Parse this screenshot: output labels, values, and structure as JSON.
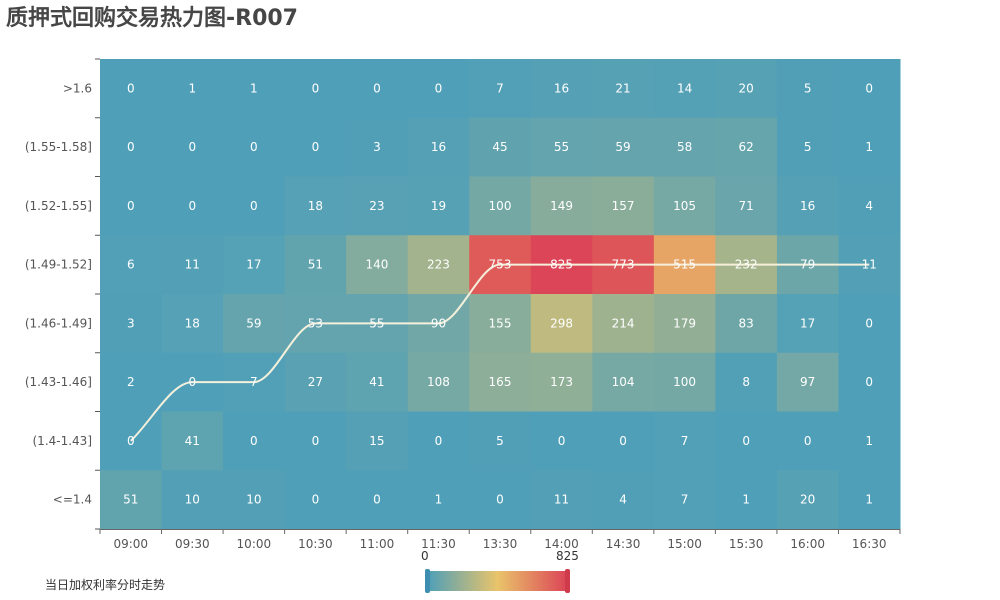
{
  "title": "质押式回购交易热力图-R007",
  "legend_label": "当日加权利率分时走势",
  "visual_map": {
    "min": "0",
    "max": "825",
    "colors": [
      "#4f9fb8",
      "#e9c46a",
      "#dc4557"
    ]
  },
  "chart_data": {
    "type": "heatmap",
    "x": [
      "09:00",
      "09:30",
      "10:00",
      "10:30",
      "11:00",
      "11:30",
      "13:30",
      "14:00",
      "14:30",
      "15:00",
      "15:30",
      "16:00",
      "16:30"
    ],
    "y": [
      ">1.6",
      "(1.55-1.58]",
      "(1.52-1.55]",
      "(1.49-1.52]",
      "(1.46-1.49]",
      "(1.43-1.46]",
      "(1.4-1.43]",
      "<=1.4"
    ],
    "values": [
      [
        0,
        1,
        1,
        0,
        0,
        0,
        7,
        16,
        21,
        14,
        20,
        5,
        0
      ],
      [
        0,
        0,
        0,
        0,
        3,
        16,
        45,
        55,
        59,
        58,
        62,
        5,
        1
      ],
      [
        0,
        0,
        0,
        18,
        23,
        19,
        100,
        149,
        157,
        105,
        71,
        16,
        4
      ],
      [
        6,
        11,
        17,
        51,
        140,
        223,
        753,
        825,
        773,
        515,
        232,
        79,
        11
      ],
      [
        3,
        18,
        59,
        53,
        55,
        90,
        155,
        298,
        214,
        179,
        83,
        17,
        0
      ],
      [
        2,
        0,
        7,
        27,
        41,
        108,
        165,
        173,
        104,
        100,
        8,
        97,
        0
      ],
      [
        0,
        41,
        0,
        0,
        15,
        0,
        5,
        0,
        0,
        7,
        0,
        0,
        1
      ],
      [
        51,
        10,
        10,
        0,
        0,
        1,
        0,
        11,
        4,
        7,
        1,
        20,
        1
      ]
    ],
    "value_range": [
      0,
      825
    ],
    "line_series": {
      "name": "当日加权利率分时走势",
      "color": "#f5f0dc",
      "y_category_index": [
        6,
        5,
        5,
        4,
        4,
        4,
        3,
        3,
        3,
        3,
        3,
        3,
        3
      ]
    }
  }
}
